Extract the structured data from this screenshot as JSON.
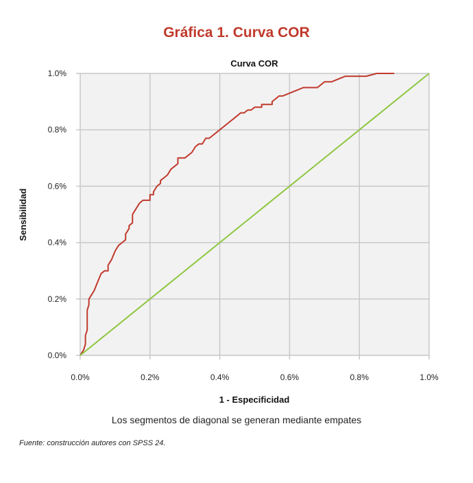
{
  "figure_title": "Gráfica 1. Curva COR",
  "note": "Los segmentos de diagonal se generan mediante empates",
  "source": "Fuente: construcción autores con SPSS 24.",
  "chart_data": {
    "type": "line",
    "title": "Curva COR",
    "xlabel": "1 - Especificidad",
    "ylabel": "Sensibilidad",
    "xlim": [
      0,
      1.0
    ],
    "ylim": [
      0,
      1.0
    ],
    "xticks": [
      "0.0%",
      "0.2%",
      "0.4%",
      "0.6%",
      "0.8%",
      "1.0%"
    ],
    "yticks": [
      "0.0%",
      "0.2%",
      "0.4%",
      "0.6%",
      "0.8%",
      "1.0%"
    ],
    "grid": true,
    "series": [
      {
        "color": "#c0392b",
        "x": [
          0.0,
          0.01,
          0.015,
          0.015,
          0.02,
          0.02,
          0.025,
          0.025,
          0.03,
          0.04,
          0.05,
          0.06,
          0.07,
          0.08,
          0.08,
          0.09,
          0.1,
          0.11,
          0.12,
          0.13,
          0.13,
          0.14,
          0.14,
          0.15,
          0.15,
          0.16,
          0.17,
          0.18,
          0.19,
          0.2,
          0.2,
          0.21,
          0.21,
          0.22,
          0.23,
          0.23,
          0.24,
          0.25,
          0.26,
          0.28,
          0.28,
          0.3,
          0.32,
          0.33,
          0.34,
          0.35,
          0.36,
          0.37,
          0.38,
          0.39,
          0.4,
          0.41,
          0.42,
          0.43,
          0.44,
          0.45,
          0.46,
          0.47,
          0.48,
          0.49,
          0.5,
          0.5,
          0.52,
          0.52,
          0.55,
          0.55,
          0.57,
          0.58,
          0.6,
          0.62,
          0.64,
          0.68,
          0.7,
          0.72,
          0.76,
          0.82,
          0.85,
          0.9
        ],
        "y": [
          0.0,
          0.02,
          0.04,
          0.07,
          0.09,
          0.16,
          0.18,
          0.2,
          0.21,
          0.23,
          0.26,
          0.29,
          0.3,
          0.3,
          0.32,
          0.34,
          0.37,
          0.39,
          0.4,
          0.41,
          0.43,
          0.45,
          0.46,
          0.47,
          0.5,
          0.52,
          0.54,
          0.55,
          0.55,
          0.55,
          0.57,
          0.57,
          0.58,
          0.6,
          0.61,
          0.62,
          0.63,
          0.64,
          0.66,
          0.68,
          0.7,
          0.7,
          0.72,
          0.74,
          0.75,
          0.75,
          0.77,
          0.77,
          0.78,
          0.79,
          0.8,
          0.81,
          0.82,
          0.83,
          0.84,
          0.85,
          0.86,
          0.86,
          0.87,
          0.87,
          0.88,
          0.88,
          0.88,
          0.89,
          0.89,
          0.9,
          0.92,
          0.92,
          0.93,
          0.94,
          0.95,
          0.95,
          0.97,
          0.97,
          0.99,
          0.99,
          1.0,
          1.0
        ]
      },
      {
        "color": "#8dc63f",
        "x": [
          0.0,
          1.0
        ],
        "y": [
          0.0,
          1.0
        ]
      }
    ]
  }
}
